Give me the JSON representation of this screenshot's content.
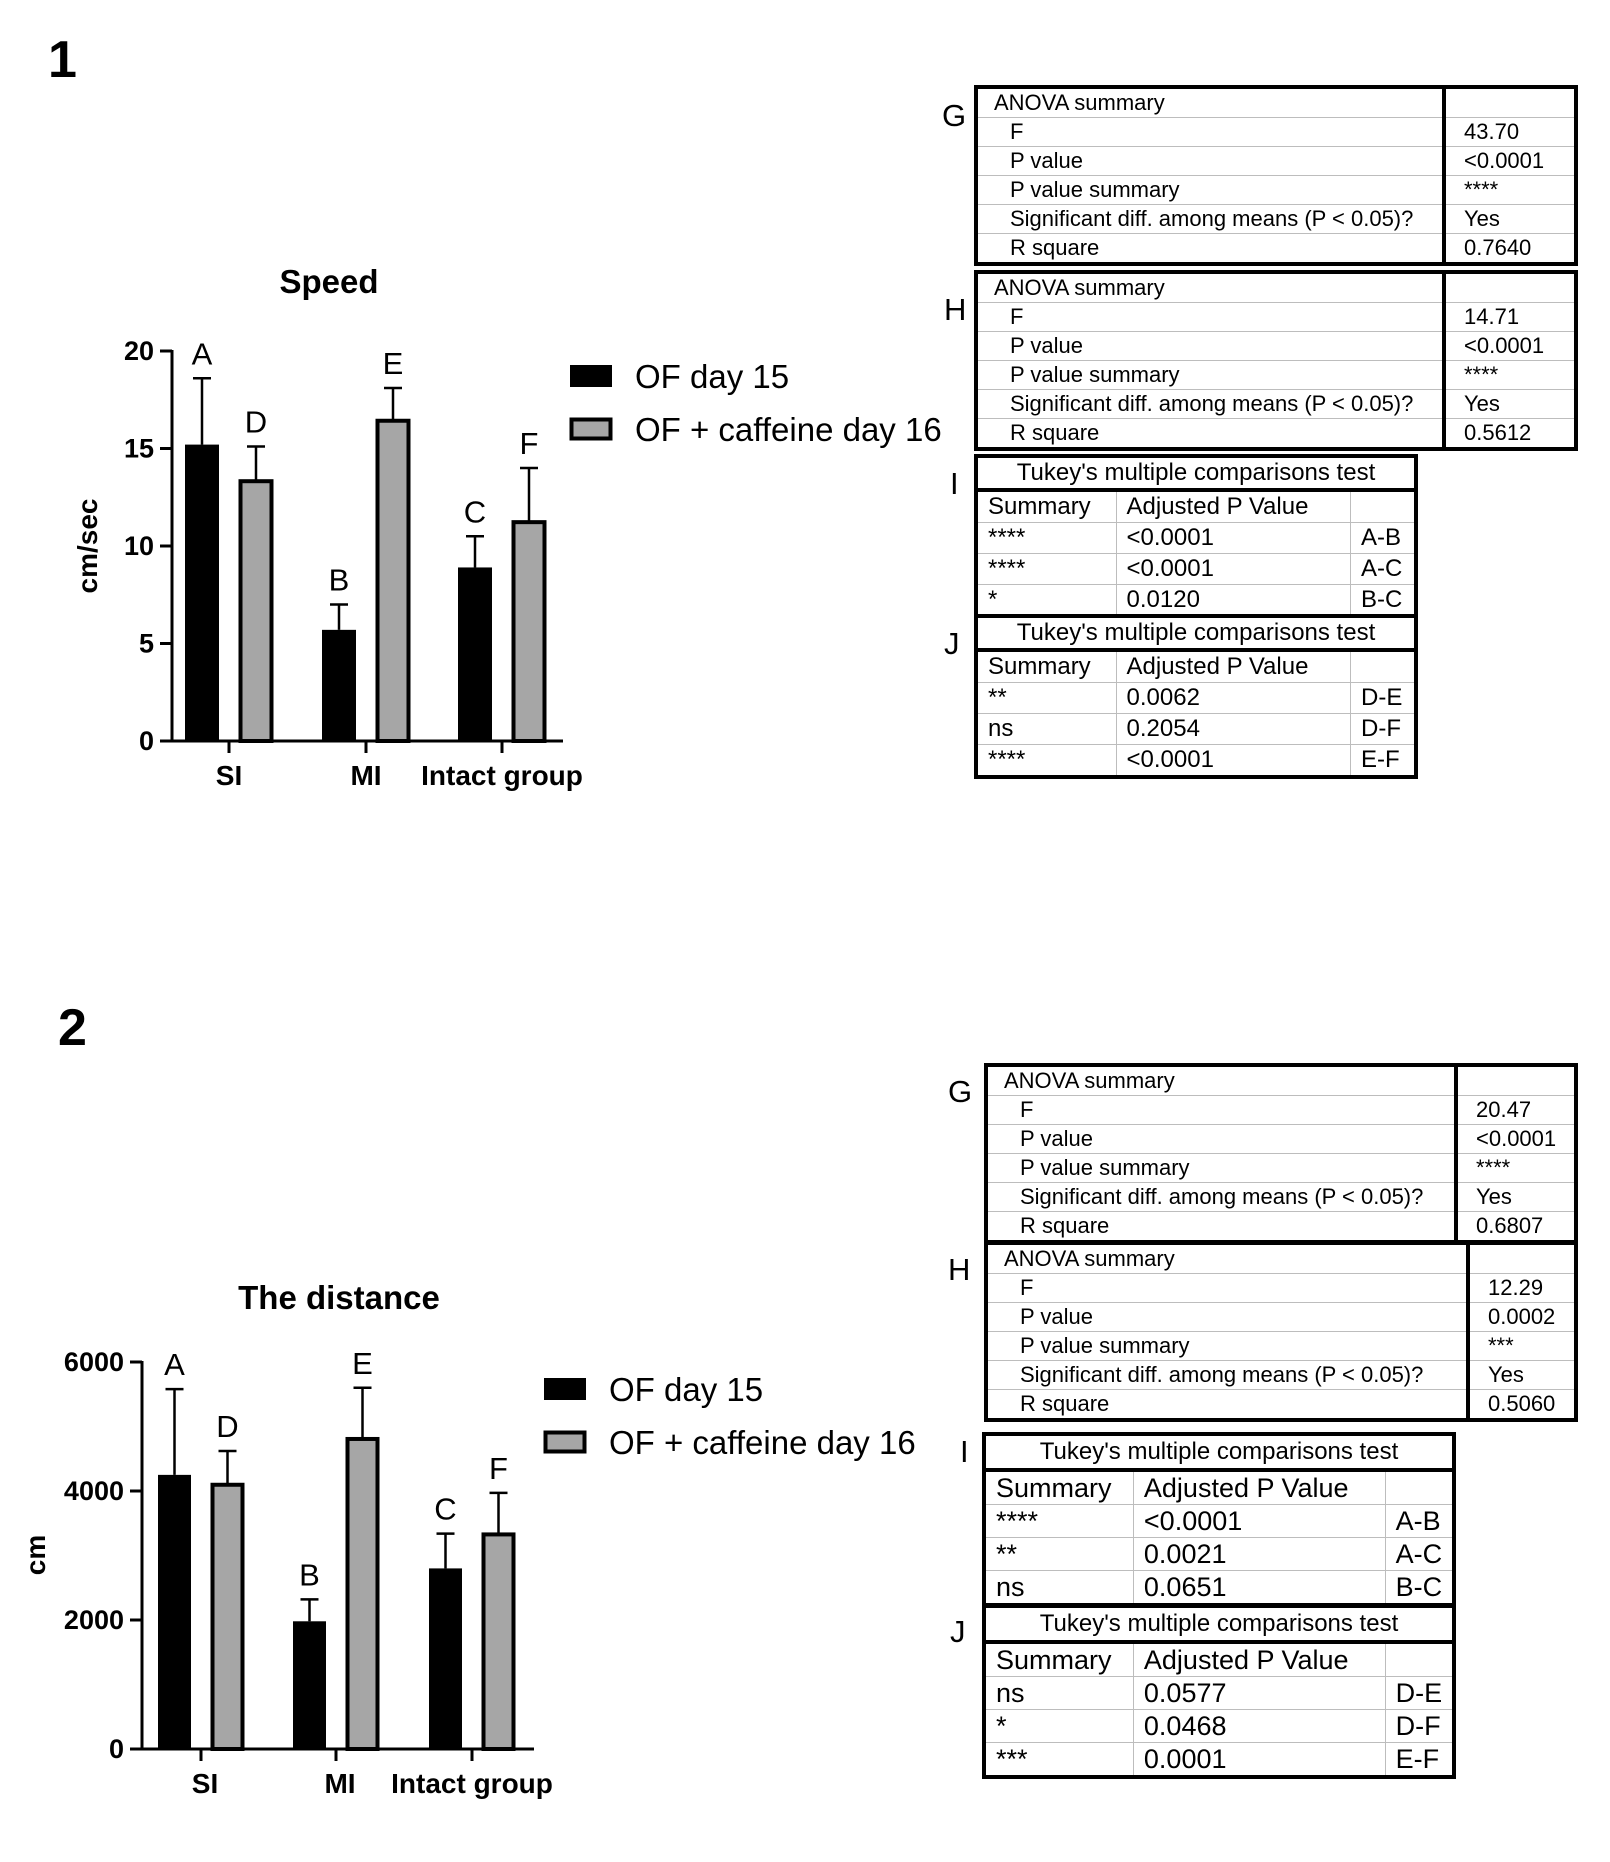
{
  "panels": [
    {
      "number": "1",
      "tables": {
        "G": {
          "letter": "G",
          "header": "ANOVA summary",
          "rows": [
            {
              "label": "F",
              "value": "43.70"
            },
            {
              "label": "P value",
              "value": "<0.0001"
            },
            {
              "label": "P value summary",
              "value": "****"
            },
            {
              "label": "Significant diff. among means (P < 0.05)?",
              "value": "Yes"
            },
            {
              "label": "R square",
              "value": "0.7640"
            }
          ]
        },
        "H": {
          "letter": "H",
          "header": "ANOVA summary",
          "rows": [
            {
              "label": "F",
              "value": "14.71"
            },
            {
              "label": "P value",
              "value": "<0.0001"
            },
            {
              "label": "P value summary",
              "value": "****"
            },
            {
              "label": "Significant diff. among means (P < 0.05)?",
              "value": "Yes"
            },
            {
              "label": "R square",
              "value": "0.5612"
            }
          ]
        },
        "I": {
          "letter": "I",
          "title": "Tukey's multiple comparisons test",
          "col1": "Summary",
          "col2": "Adjusted P Value",
          "rows": [
            {
              "summary": "****",
              "p": "<0.0001",
              "pair": "A-B"
            },
            {
              "summary": "****",
              "p": "<0.0001",
              "pair": "A-C"
            },
            {
              "summary": "*",
              "p": "0.0120",
              "pair": "B-C"
            }
          ]
        },
        "J": {
          "letter": "J",
          "title": "Tukey's multiple comparisons test",
          "col1": "Summary",
          "col2": "Adjusted P Value",
          "rows": [
            {
              "summary": "**",
              "p": "0.0062",
              "pair": "D-E"
            },
            {
              "summary": "ns",
              "p": "0.2054",
              "pair": "D-F"
            },
            {
              "summary": "****",
              "p": "<0.0001",
              "pair": "E-F"
            }
          ]
        }
      }
    },
    {
      "number": "2",
      "tables": {
        "G": {
          "letter": "G",
          "header": "ANOVA summary",
          "rows": [
            {
              "label": "F",
              "value": "20.47"
            },
            {
              "label": "P value",
              "value": "<0.0001"
            },
            {
              "label": "P value summary",
              "value": "****"
            },
            {
              "label": "Significant diff. among means (P < 0.05)?",
              "value": "Yes"
            },
            {
              "label": "R square",
              "value": "0.6807"
            }
          ]
        },
        "H": {
          "letter": "H",
          "header": "ANOVA summary",
          "rows": [
            {
              "label": "F",
              "value": "12.29"
            },
            {
              "label": "P value",
              "value": "0.0002"
            },
            {
              "label": "P value summary",
              "value": "***"
            },
            {
              "label": "Significant diff. among means (P < 0.05)?",
              "value": "Yes"
            },
            {
              "label": "R square",
              "value": "0.5060"
            }
          ]
        },
        "I": {
          "letter": "I",
          "title": "Tukey's multiple comparisons test",
          "col1": "Summary",
          "col2": "Adjusted P Value",
          "rows": [
            {
              "summary": "****",
              "p": "<0.0001",
              "pair": "A-B"
            },
            {
              "summary": "**",
              "p": "0.0021",
              "pair": "A-C"
            },
            {
              "summary": "ns",
              "p": "0.0651",
              "pair": "B-C"
            }
          ]
        },
        "J": {
          "letter": "J",
          "title": "Tukey's multiple comparisons test",
          "col1": "Summary",
          "col2": "Adjusted P Value",
          "rows": [
            {
              "summary": "ns",
              "p": "0.0577",
              "pair": "D-E"
            },
            {
              "summary": "*",
              "p": "0.0468",
              "pair": "D-F"
            },
            {
              "summary": "***",
              "p": "0.0001",
              "pair": "E-F"
            }
          ]
        }
      }
    }
  ],
  "colors": {
    "series1": "#000000",
    "series2": "#a6a6a6"
  },
  "chart_data": [
    {
      "type": "bar",
      "title": "Speed",
      "xlabel": "",
      "ylabel": "cm/sec",
      "ylim": [
        0,
        20
      ],
      "yticks": [
        0,
        5,
        10,
        15,
        20
      ],
      "categories": [
        "SI",
        "MI",
        "Intact group"
      ],
      "series": [
        {
          "name": "OF day 15",
          "values": [
            15.2,
            5.7,
            8.9
          ],
          "errors": [
            3.4,
            1.3,
            1.6
          ],
          "labels": [
            "A",
            "B",
            "C"
          ]
        },
        {
          "name": "OF + caffeine day 16",
          "values": [
            13.4,
            16.5,
            11.3
          ],
          "errors": [
            1.7,
            1.6,
            2.7
          ],
          "labels": [
            "D",
            "E",
            "F"
          ]
        }
      ],
      "legend": "right"
    },
    {
      "type": "bar",
      "title": "The distance",
      "xlabel": "",
      "ylabel": "cm",
      "ylim": [
        0,
        6000
      ],
      "yticks": [
        0,
        2000,
        4000,
        6000
      ],
      "categories": [
        "SI",
        "MI",
        "Intact group"
      ],
      "series": [
        {
          "name": "OF day 15",
          "values": [
            4250,
            1980,
            2800
          ],
          "errors": [
            1330,
            340,
            540
          ],
          "labels": [
            "A",
            "B",
            "C"
          ]
        },
        {
          "name": "OF + caffeine day 16",
          "values": [
            4120,
            4830,
            3350
          ],
          "errors": [
            500,
            770,
            620
          ],
          "labels": [
            "D",
            "E",
            "F"
          ]
        }
      ],
      "legend": "right"
    }
  ]
}
